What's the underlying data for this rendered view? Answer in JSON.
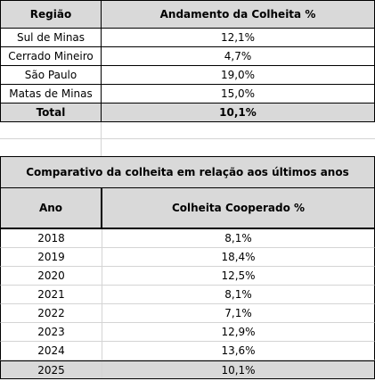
{
  "table1": {
    "headers": {
      "region": "Região",
      "progress": "Andamento da Colheita %"
    },
    "rows": [
      {
        "region": "Sul de Minas",
        "value": "12,1%"
      },
      {
        "region": "Cerrado Mineiro",
        "value": "4,7%"
      },
      {
        "region": "São Paulo",
        "value": "19,0%"
      },
      {
        "region": "Matas de Minas",
        "value": "15,0%"
      }
    ],
    "total": {
      "label": "Total",
      "value": "10,1%"
    }
  },
  "table2": {
    "title": "Comparativo da colheita em relação aos últimos anos",
    "headers": {
      "year": "Ano",
      "harvest": "Colheita Cooperado %"
    },
    "rows": [
      {
        "year": "2018",
        "value": "8,1%"
      },
      {
        "year": "2019",
        "value": "18,4%"
      },
      {
        "year": "2020",
        "value": "12,5%"
      },
      {
        "year": "2021",
        "value": "8,1%"
      },
      {
        "year": "2022",
        "value": "7,1%"
      },
      {
        "year": "2023",
        "value": "12,9%"
      },
      {
        "year": "2024",
        "value": "13,6%"
      },
      {
        "year": "2025",
        "value": "10,1%"
      }
    ]
  }
}
